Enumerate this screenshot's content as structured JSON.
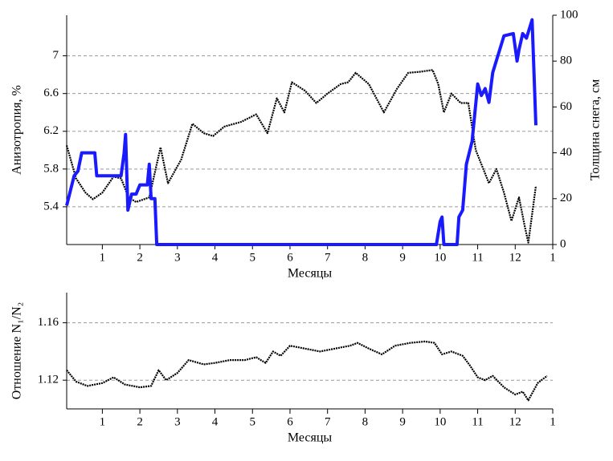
{
  "chart_data": [
    {
      "type": "line",
      "ylabel": "Анизотропия, %",
      "y2label": "Толщина снега, см",
      "xlabel": "Месяцы",
      "xlim": [
        0.05,
        13
      ],
      "xticks": [
        1,
        2,
        3,
        4,
        5,
        6,
        7,
        8,
        9,
        10,
        11,
        12,
        {
          "value": 13,
          "label": "1"
        }
      ],
      "ylim": [
        5.0,
        7.43
      ],
      "yticks": [
        5.4,
        5.8,
        6.2,
        6.6,
        7
      ],
      "y2lim": [
        0,
        100
      ],
      "y2ticks": [
        0,
        20,
        40,
        60,
        80,
        100
      ],
      "grid": true,
      "series": [
        {
          "color": "#000000",
          "x": [
            0.05,
            0.3,
            0.55,
            0.75,
            1.0,
            1.3,
            1.5,
            1.7,
            1.9,
            2.25,
            2.55,
            2.75,
            3.1,
            3.4,
            3.7,
            3.95,
            4.25,
            4.7,
            5.1,
            5.4,
            5.65,
            5.85,
            6.05,
            6.4,
            6.7,
            7.0,
            7.35,
            7.55,
            7.75,
            8.1,
            8.5,
            8.85,
            9.15,
            9.45,
            9.8,
            9.95,
            10.1,
            10.3,
            10.55,
            10.75,
            10.95,
            11.3,
            11.5,
            11.7,
            11.9,
            12.1,
            12.25,
            12.35,
            12.55
          ],
          "values": [
            6.05,
            5.7,
            5.55,
            5.48,
            5.55,
            5.72,
            5.7,
            5.5,
            5.45,
            5.5,
            6.03,
            5.65,
            5.9,
            6.28,
            6.18,
            6.15,
            6.25,
            6.3,
            6.38,
            6.18,
            6.55,
            6.4,
            6.72,
            6.63,
            6.5,
            6.6,
            6.7,
            6.72,
            6.82,
            6.7,
            6.4,
            6.65,
            6.82,
            6.83,
            6.85,
            6.7,
            6.4,
            6.6,
            6.5,
            6.5,
            6.0,
            5.65,
            5.8,
            5.55,
            5.25,
            5.5,
            5.2,
            5.02,
            5.62
          ]
        },
        {
          "color": "#1a1aff",
          "axis": "y2",
          "x": [
            0.05,
            0.25,
            0.35,
            0.45,
            0.8,
            0.85,
            1.5,
            1.58,
            1.62,
            1.68,
            1.78,
            1.9,
            2.0,
            2.2,
            2.25,
            2.3,
            2.4,
            2.45,
            9.9,
            10.0,
            10.05,
            10.1,
            10.45,
            10.5,
            10.6,
            10.7,
            10.85,
            11.0,
            11.1,
            11.2,
            11.3,
            11.4,
            11.55,
            11.7,
            11.95,
            12.05,
            12.1,
            12.2,
            12.3,
            12.45,
            12.55
          ],
          "values": [
            17,
            30,
            32,
            40,
            40,
            30,
            30,
            40,
            48,
            15,
            22,
            22,
            26,
            26,
            35,
            20,
            20,
            0,
            0,
            10,
            12,
            0,
            0,
            12,
            15,
            35,
            45,
            70,
            65,
            68,
            62,
            75,
            83,
            91,
            92,
            80,
            85,
            92,
            90,
            98,
            52
          ]
        }
      ]
    },
    {
      "type": "line",
      "ylabel": "Отношение N₁/N₂",
      "xlabel": "Месяцы",
      "xlim": [
        0.05,
        13
      ],
      "xticks": [
        1,
        2,
        3,
        4,
        5,
        6,
        7,
        8,
        9,
        10,
        11,
        12,
        {
          "value": 13,
          "label": "1"
        }
      ],
      "ylim": [
        1.1,
        1.181
      ],
      "yticks": [
        1.12,
        1.16
      ],
      "grid": true,
      "series": [
        {
          "color": "#000000",
          "x": [
            0.05,
            0.3,
            0.6,
            1.0,
            1.3,
            1.6,
            2.0,
            2.3,
            2.5,
            2.7,
            3.0,
            3.3,
            3.7,
            4.0,
            4.4,
            4.8,
            5.1,
            5.35,
            5.55,
            5.75,
            6.0,
            6.4,
            6.8,
            7.2,
            7.6,
            7.8,
            8.1,
            8.45,
            8.8,
            9.2,
            9.6,
            9.85,
            10.05,
            10.3,
            10.6,
            10.8,
            11.0,
            11.2,
            11.4,
            11.7,
            12.0,
            12.2,
            12.35,
            12.6,
            12.85
          ],
          "values": [
            1.127,
            1.119,
            1.116,
            1.118,
            1.122,
            1.117,
            1.115,
            1.116,
            1.127,
            1.12,
            1.125,
            1.134,
            1.131,
            1.132,
            1.134,
            1.134,
            1.136,
            1.132,
            1.14,
            1.137,
            1.144,
            1.142,
            1.14,
            1.142,
            1.144,
            1.146,
            1.142,
            1.138,
            1.144,
            1.146,
            1.147,
            1.146,
            1.138,
            1.14,
            1.137,
            1.13,
            1.122,
            1.12,
            1.123,
            1.115,
            1.11,
            1.112,
            1.106,
            1.118,
            1.123
          ]
        }
      ]
    }
  ]
}
